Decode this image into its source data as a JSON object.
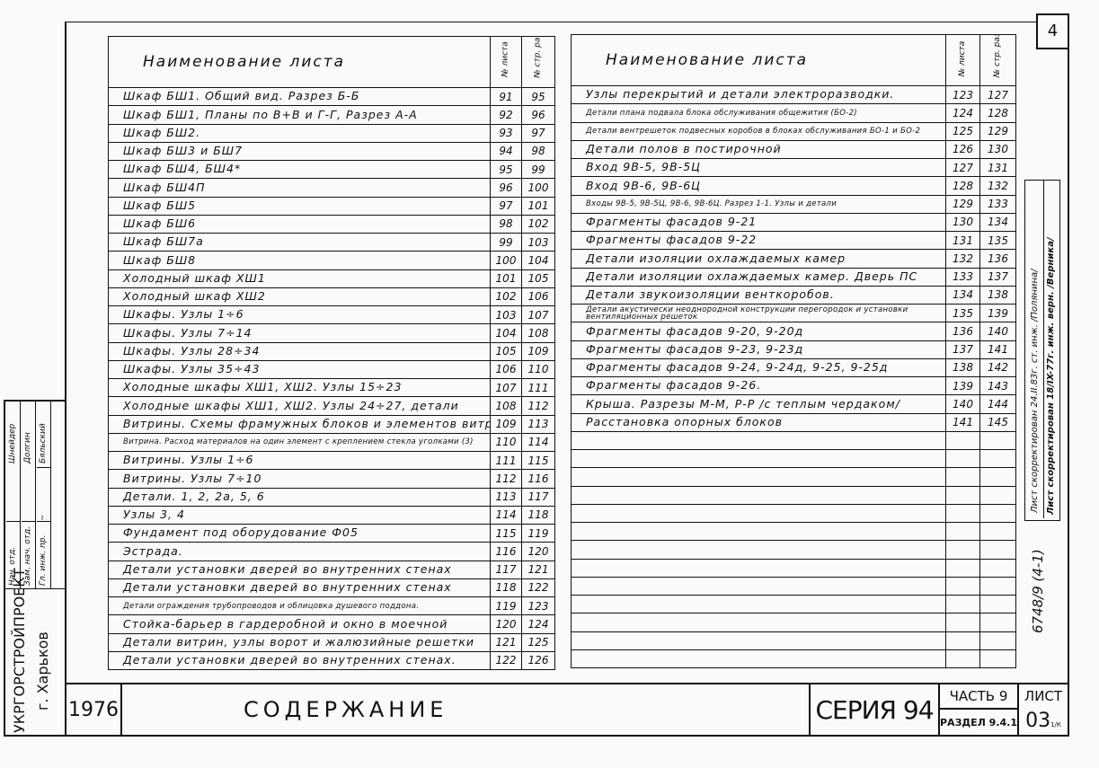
{
  "sheet_corner_number": "4",
  "left_table": {
    "header": {
      "name": "Наименование листа",
      "sheet_no": "№ листа",
      "page_no": "№ стр. раздела"
    },
    "rows": [
      {
        "name": "Шкаф БШ1. Общий вид. Разрез Б-Б",
        "sheet": "91",
        "page": "95"
      },
      {
        "name": "Шкаф БШ1, Планы по В+В и Г-Г, Разрез А-А",
        "sheet": "92",
        "page": "96"
      },
      {
        "name": "Шкаф БШ2.",
        "sheet": "93",
        "page": "97"
      },
      {
        "name": "Шкаф БШ3 и БШ7",
        "sheet": "94",
        "page": "98"
      },
      {
        "name": "Шкаф БШ4, БШ4*",
        "sheet": "95",
        "page": "99"
      },
      {
        "name": "Шкаф БШ4П",
        "sheet": "96",
        "page": "100"
      },
      {
        "name": "Шкаф БШ5",
        "sheet": "97",
        "page": "101"
      },
      {
        "name": "Шкаф БШ6",
        "sheet": "98",
        "page": "102"
      },
      {
        "name": "Шкаф БШ7а",
        "sheet": "99",
        "page": "103"
      },
      {
        "name": "Шкаф БШ8",
        "sheet": "100",
        "page": "104"
      },
      {
        "name": "Холодный шкаф ХШ1",
        "sheet": "101",
        "page": "105"
      },
      {
        "name": "Холодный шкаф ХШ2",
        "sheet": "102",
        "page": "106"
      },
      {
        "name": "Шкафы. Узлы 1÷6",
        "sheet": "103",
        "page": "107"
      },
      {
        "name": "Шкафы. Узлы 7÷14",
        "sheet": "104",
        "page": "108"
      },
      {
        "name": "Шкафы. Узлы 28÷34",
        "sheet": "105",
        "page": "109"
      },
      {
        "name": "Шкафы. Узлы 35÷43",
        "sheet": "106",
        "page": "110"
      },
      {
        "name": "Холодные шкафы ХШ1, ХШ2. Узлы 15÷23",
        "sheet": "107",
        "page": "111"
      },
      {
        "name": "Холодные шкафы ХШ1, ХШ2. Узлы 24÷27, детали",
        "sheet": "108",
        "page": "112"
      },
      {
        "name": "Витрины. Схемы фрамужных блоков и элементов витрин",
        "sheet": "109",
        "page": "113"
      },
      {
        "name": "Витрина. Расход материалов на один элемент с креплением стекла уголками (3)",
        "sheet": "110",
        "page": "114"
      },
      {
        "name": "Витрины. Узлы 1÷6",
        "sheet": "111",
        "page": "115"
      },
      {
        "name": "Витрины. Узлы 7÷10",
        "sheet": "112",
        "page": "116"
      },
      {
        "name": "Детали. 1, 2, 2а, 5, 6",
        "sheet": "113",
        "page": "117"
      },
      {
        "name": "Узлы 3, 4",
        "sheet": "114",
        "page": "118"
      },
      {
        "name": "Фундамент под оборудование Ф05",
        "sheet": "115",
        "page": "119"
      },
      {
        "name": "Эстрада.",
        "sheet": "116",
        "page": "120"
      },
      {
        "name": "Детали установки дверей во внутренних стенах",
        "sheet": "117",
        "page": "121"
      },
      {
        "name": "Детали установки дверей во внутренних стенах",
        "sheet": "118",
        "page": "122"
      },
      {
        "name": "Детали ограждения трубопроводов и облицовка душевого поддона.",
        "sheet": "119",
        "page": "123"
      },
      {
        "name": "Стойка-барьер в гардеробной и окно в моечной",
        "sheet": "120",
        "page": "124"
      },
      {
        "name": "Детали витрин, узлы ворот и жалюзийные решетки",
        "sheet": "121",
        "page": "125"
      },
      {
        "name": "Детали установки дверей во внутренних стенах.",
        "sheet": "122",
        "page": "126"
      }
    ]
  },
  "right_table": {
    "header": {
      "name": "Наименование листа",
      "sheet_no": "№ листа",
      "page_no": "№ стр. раздела"
    },
    "rows": [
      {
        "name": "Узлы перекрытий и детали электроразводки.",
        "sheet": "123",
        "page": "127"
      },
      {
        "name": "Детали плана подвала блока обслуживания общежития (БО-2)",
        "sheet": "124",
        "page": "128"
      },
      {
        "name": "Детали вентрешеток подвесных коробов в блоках обслуживания БО-1 и БО-2",
        "sheet": "125",
        "page": "129"
      },
      {
        "name": "Детали полов в постирочной",
        "sheet": "126",
        "page": "130"
      },
      {
        "name": "Вход 9В-5, 9В-5Ц",
        "sheet": "127",
        "page": "131"
      },
      {
        "name": "Вход 9В-6, 9В-6Ц",
        "sheet": "128",
        "page": "132"
      },
      {
        "name": "Входы 9В-5, 9В-5Ц, 9В-6, 9В-6Ц. Разрез 1-1. Узлы и детали",
        "sheet": "129",
        "page": "133"
      },
      {
        "name": "Фрагменты фасадов 9-21",
        "sheet": "130",
        "page": "134"
      },
      {
        "name": "Фрагменты фасадов 9-22",
        "sheet": "131",
        "page": "135"
      },
      {
        "name": "Детали изоляции охлаждаемых камер",
        "sheet": "132",
        "page": "136"
      },
      {
        "name": "Детали изоляции охлаждаемых камер. Дверь ПС",
        "sheet": "133",
        "page": "137"
      },
      {
        "name": "Детали звукоизоляции венткоробов.",
        "sheet": "134",
        "page": "138"
      },
      {
        "name": "Детали акустически неоднородной конструкции перегородок и установки вентиляционных решеток",
        "sheet": "135",
        "page": "139"
      },
      {
        "name": "Фрагменты фасадов 9-20, 9-20д",
        "sheet": "136",
        "page": "140"
      },
      {
        "name": "Фрагменты фасадов 9-23, 9-23д",
        "sheet": "137",
        "page": "141"
      },
      {
        "name": "Фрагменты фасадов 9-24, 9-24д, 9-25, 9-25д",
        "sheet": "138",
        "page": "142"
      },
      {
        "name": "Фрагменты фасадов 9-26.",
        "sheet": "139",
        "page": "143"
      },
      {
        "name": "Крыша. Разрезы М-М, Р-Р /с теплым чердаком/",
        "sheet": "140",
        "page": "144"
      },
      {
        "name": "Расстановка опорных блоков",
        "sheet": "141",
        "page": "145"
      }
    ],
    "empty_rows": 13
  },
  "title_block": {
    "year": "1976",
    "title": "СОДЕРЖАНИЕ",
    "series": "СЕРИЯ 94",
    "part": "ЧАСТЬ 9",
    "section": "РАЗДЕЛ 9.4.1",
    "sheet_label": "ЛИСТ",
    "sheet_value": "03",
    "sheet_suffix": "1/К"
  },
  "stamp": {
    "organization": "УКРГОРСТРОЙПРОЕКТ",
    "city": "г. Харьков",
    "roles": [
      "Нач. отд.",
      "Зам. нач. отд.",
      "Гл. инж. пр."
    ],
    "names": [
      "Шнейдер",
      "Долгин",
      "Бяльский"
    ]
  },
  "side_notes": {
    "note1": "Лист скорректирован 24.II.83г. ст. инж. /Полянина/",
    "note2": "Лист скорректирован 18/IX-77г. инж. верн. /Верника/",
    "code": "6748/9 (4-1)"
  }
}
